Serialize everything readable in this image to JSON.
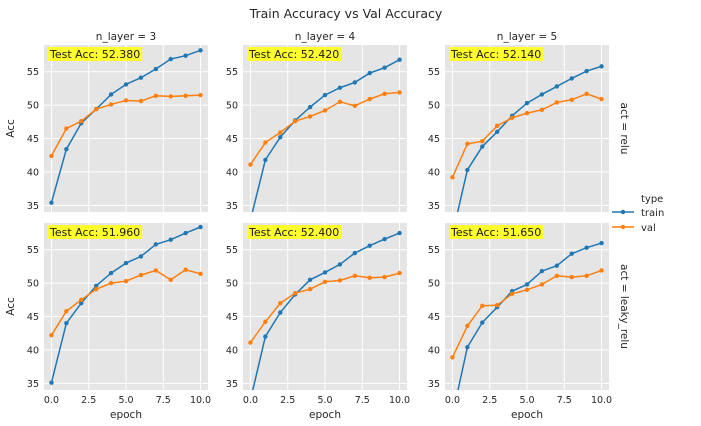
{
  "chart_data": {
    "type": "line",
    "title": "Train Accuracy vs Val Accuracy",
    "xlabel": "epoch",
    "ylabel": "Acc",
    "x": [
      0,
      1,
      2,
      3,
      4,
      5,
      6,
      7,
      8,
      9,
      10
    ],
    "x_ticks": [
      "0.0",
      "2.5",
      "5.0",
      "7.5",
      "10.0"
    ],
    "xlim": [
      -0.5,
      10.5
    ],
    "grid": true,
    "legend": {
      "title": "type",
      "placement": "right",
      "entries": [
        "train",
        "val"
      ]
    },
    "colors": {
      "train": "#1f77b4",
      "val": "#ff7f0e",
      "panel_bg": "#e5e5e5",
      "annotation_bg": "#ffff2e"
    },
    "col_titles": [
      "n_layer = 3",
      "n_layer = 4",
      "n_layer = 5"
    ],
    "row_titles": [
      "act = relu",
      "act = leaky_relu"
    ],
    "rows": [
      {
        "ylim": [
          34,
          59
        ],
        "yticks": [
          35,
          40,
          45,
          50,
          55
        ],
        "panels": [
          {
            "annotation": "Test Acc: 52.380",
            "series": [
              {
                "name": "train",
                "values": [
                  35.4,
                  43.4,
                  47.3,
                  49.4,
                  51.6,
                  53.1,
                  54.1,
                  55.4,
                  56.9,
                  57.4,
                  58.2
                ]
              },
              {
                "name": "val",
                "values": [
                  42.4,
                  46.5,
                  47.6,
                  49.4,
                  50.1,
                  50.7,
                  50.6,
                  51.4,
                  51.3,
                  51.4,
                  51.5
                ]
              }
            ]
          },
          {
            "annotation": "Test Acc: 52.420",
            "series": [
              {
                "name": "train",
                "values": [
                  32.8,
                  41.8,
                  45.2,
                  47.7,
                  49.7,
                  51.5,
                  52.6,
                  53.4,
                  54.8,
                  55.6,
                  56.8
                ]
              },
              {
                "name": "val",
                "values": [
                  41.1,
                  44.4,
                  45.9,
                  47.6,
                  48.3,
                  49.2,
                  50.5,
                  49.9,
                  50.9,
                  51.7,
                  51.9
                ]
              }
            ]
          },
          {
            "annotation": "Test Acc: 52.140",
            "series": [
              {
                "name": "train",
                "values": [
                  30.6,
                  40.3,
                  43.8,
                  46.0,
                  48.4,
                  50.3,
                  51.6,
                  52.8,
                  54.0,
                  55.1,
                  55.8
                ]
              },
              {
                "name": "val",
                "values": [
                  39.2,
                  44.2,
                  44.6,
                  46.9,
                  48.1,
                  48.8,
                  49.3,
                  50.4,
                  50.8,
                  51.7,
                  50.9
                ]
              }
            ]
          }
        ]
      },
      {
        "ylim": [
          34,
          59
        ],
        "yticks": [
          35,
          40,
          45,
          50,
          55
        ],
        "panels": [
          {
            "annotation": "Test Acc: 51.960",
            "series": [
              {
                "name": "train",
                "values": [
                  35.1,
                  44.0,
                  47.0,
                  49.6,
                  51.5,
                  53.0,
                  54.0,
                  55.8,
                  56.5,
                  57.5,
                  58.4
                ]
              },
              {
                "name": "val",
                "values": [
                  42.2,
                  45.8,
                  47.5,
                  49.1,
                  50.0,
                  50.3,
                  51.2,
                  51.9,
                  50.5,
                  52.0,
                  51.4
                ]
              }
            ]
          },
          {
            "annotation": "Test Acc: 52.400",
            "series": [
              {
                "name": "train",
                "values": [
                  32.5,
                  42.0,
                  45.6,
                  48.3,
                  50.5,
                  51.6,
                  52.8,
                  54.5,
                  55.6,
                  56.6,
                  57.5
                ]
              },
              {
                "name": "val",
                "values": [
                  41.1,
                  44.2,
                  47.0,
                  48.5,
                  49.1,
                  50.2,
                  50.4,
                  51.1,
                  50.8,
                  50.9,
                  51.5
                ]
              }
            ]
          },
          {
            "annotation": "Test Acc: 51.650",
            "series": [
              {
                "name": "train",
                "values": [
                  30.2,
                  40.4,
                  44.1,
                  46.4,
                  48.8,
                  49.8,
                  51.8,
                  52.6,
                  54.4,
                  55.3,
                  56.0
                ]
              },
              {
                "name": "val",
                "values": [
                  38.9,
                  43.6,
                  46.6,
                  46.7,
                  48.4,
                  49.0,
                  49.8,
                  51.1,
                  50.9,
                  51.1,
                  51.9
                ]
              }
            ]
          }
        ]
      }
    ]
  }
}
